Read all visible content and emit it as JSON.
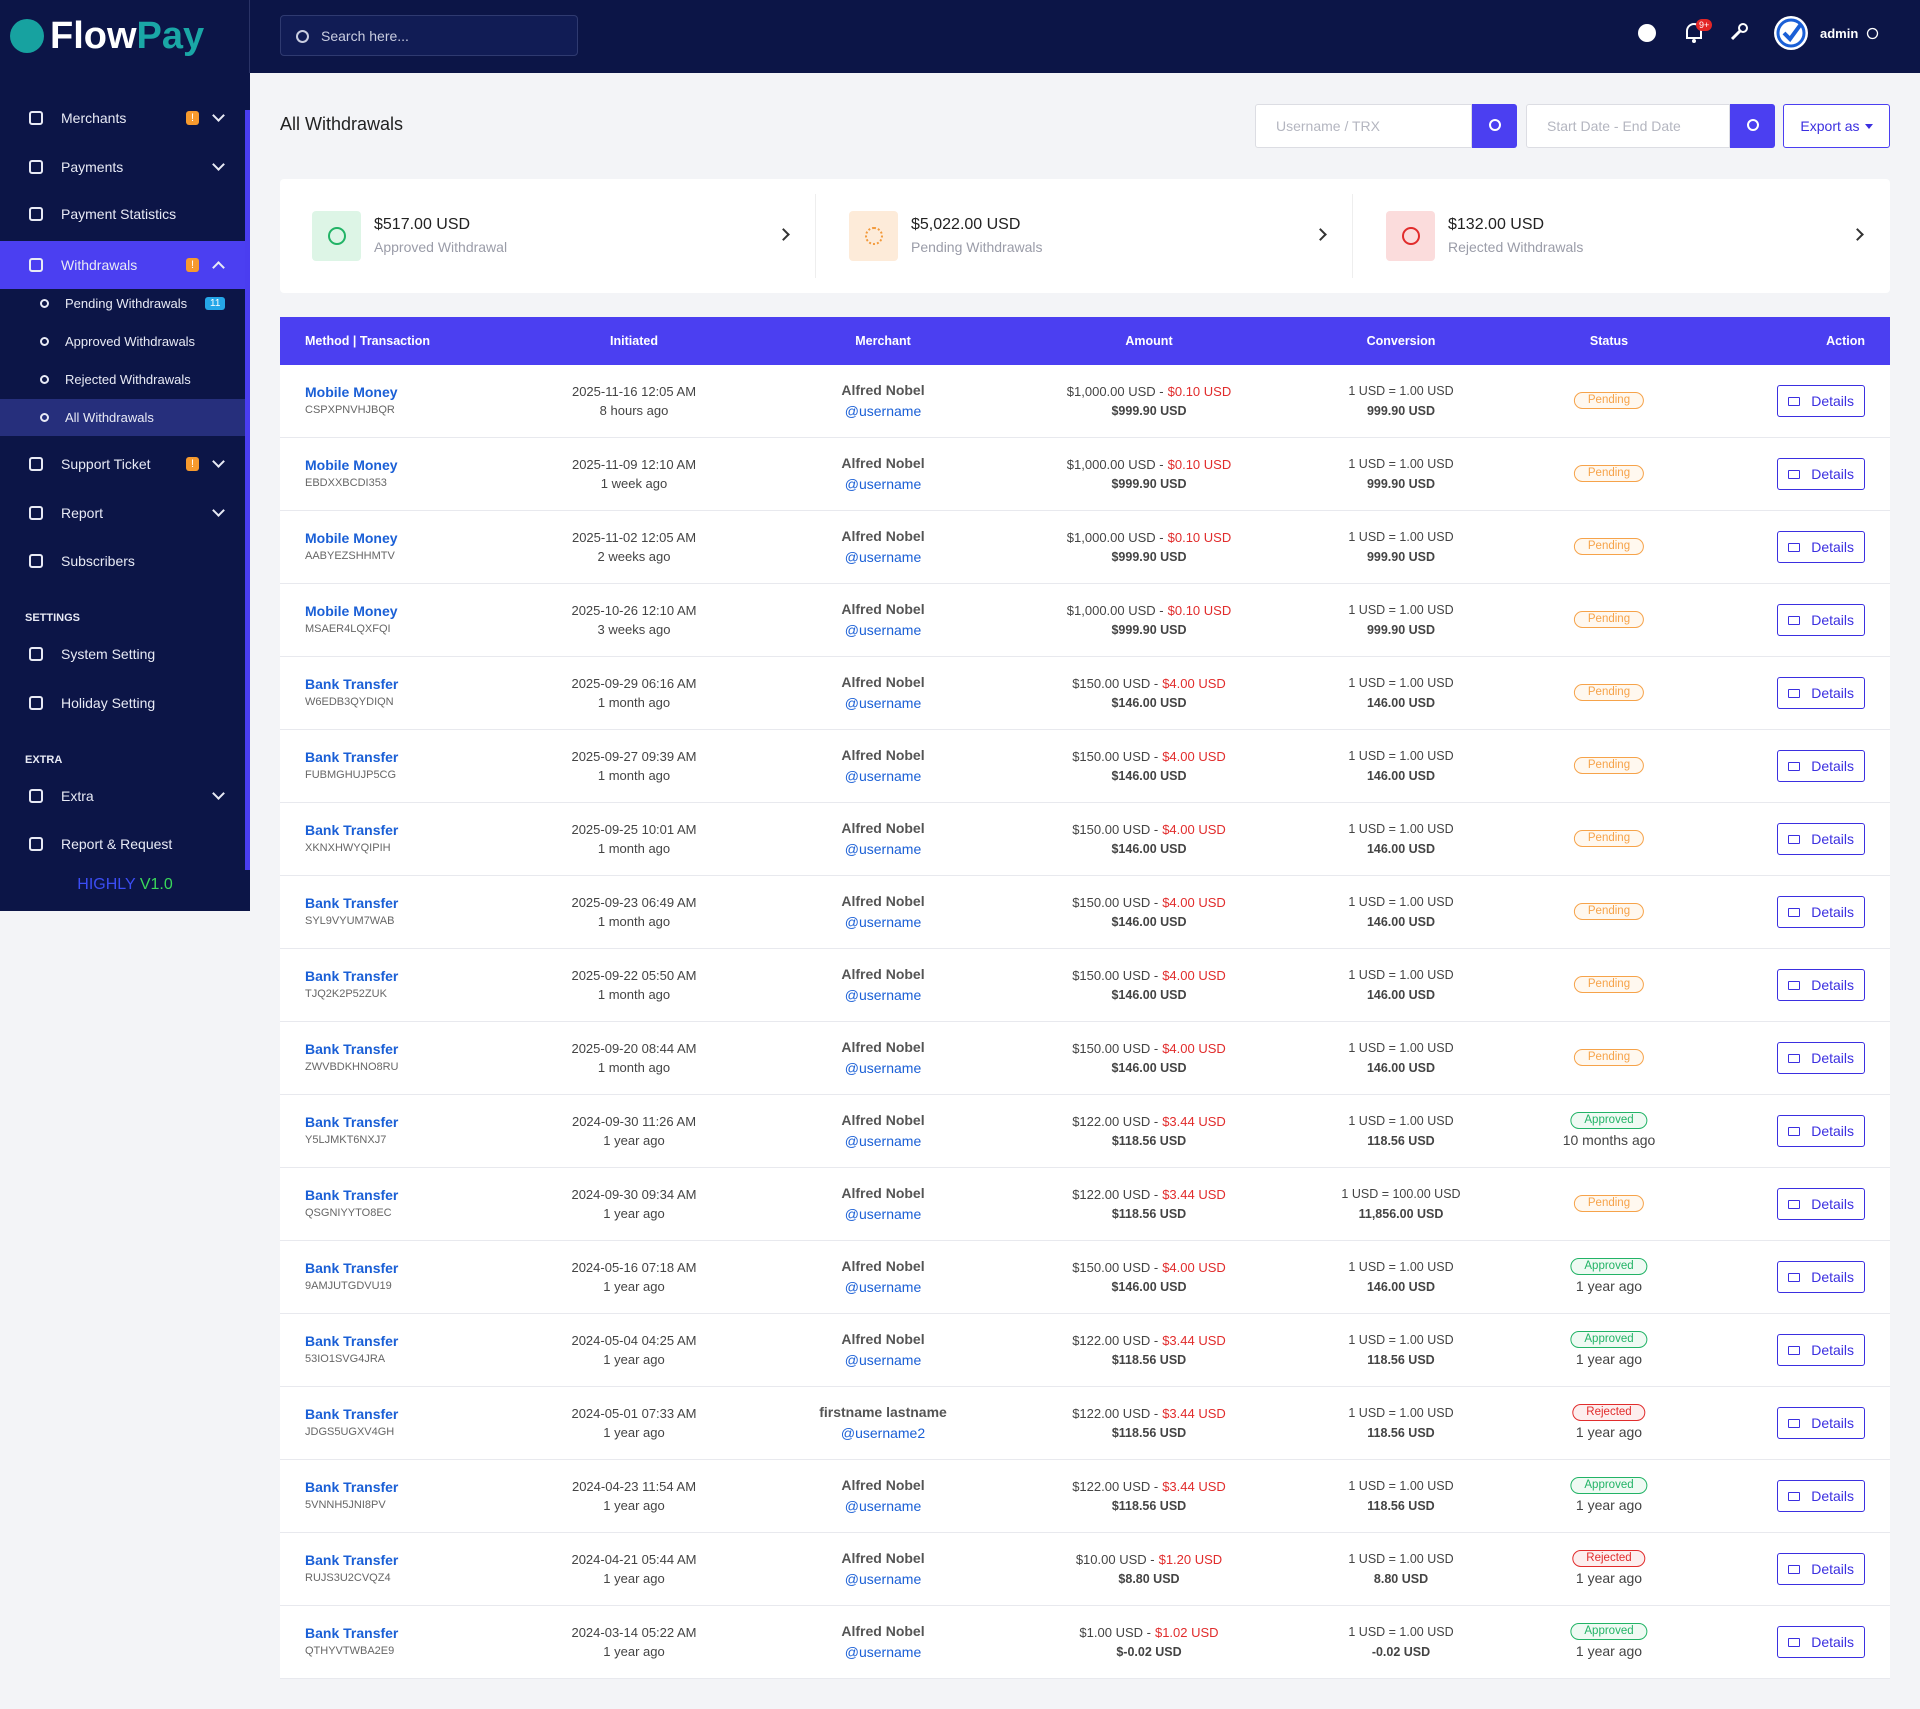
{
  "brand": {
    "part1": "Flow",
    "part2": "Pay"
  },
  "header": {
    "search_placeholder": "Search here...",
    "notification_badge": "9+",
    "user": "admin"
  },
  "sidebar": {
    "items": [
      {
        "label": "Merchants",
        "badge": "!"
      },
      {
        "label": "Payments"
      },
      {
        "label": "Payment Statistics"
      },
      {
        "label": "Withdrawals",
        "badge": "!"
      },
      {
        "label": "Pending Withdrawals",
        "badge": "11"
      },
      {
        "label": "Approved Withdrawals"
      },
      {
        "label": "Rejected Withdrawals"
      },
      {
        "label": "All Withdrawals"
      },
      {
        "label": "Support Ticket",
        "badge": "!"
      },
      {
        "label": "Report"
      },
      {
        "label": "Subscribers"
      },
      {
        "label": "SETTINGS"
      },
      {
        "label": "System Setting"
      },
      {
        "label": "Holiday Setting"
      },
      {
        "label": "EXTRA"
      },
      {
        "label": "Extra"
      },
      {
        "label": "Report & Request"
      }
    ],
    "footer": {
      "name": "HIGHLY",
      "version": "V1.0"
    }
  },
  "page": {
    "title": "All Withdrawals",
    "filter_user_placeholder": "Username / TRX",
    "filter_date_placeholder": "Start Date - End Date",
    "export": "Export as"
  },
  "stats": [
    {
      "amount": "$517.00 USD",
      "label": "Approved Withdrawal"
    },
    {
      "amount": "$5,022.00 USD",
      "label": "Pending Withdrawals"
    },
    {
      "amount": "$132.00 USD",
      "label": "Rejected Withdrawals"
    }
  ],
  "table": {
    "headers": [
      "Method | Transaction",
      "Initiated",
      "Merchant",
      "Amount",
      "Conversion",
      "Status",
      "Action"
    ],
    "action": "Details",
    "rows": [
      {
        "method": "Mobile Money",
        "trx": "CSPXPNVHJBQR",
        "date": "2025-11-16 12:05 AM",
        "ago": "8 hours ago",
        "name": "Alfred Nobel",
        "user": "@username",
        "amount": "$1,000.00 USD -",
        "charge": "$0.10 USD",
        "net": "$999.90 USD",
        "rate": "1 USD = 1.00 USD",
        "converted": "999.90 USD",
        "status": "Pending"
      },
      {
        "method": "Mobile Money",
        "trx": "EBDXXBCDI353",
        "date": "2025-11-09 12:10 AM",
        "ago": "1 week ago",
        "name": "Alfred Nobel",
        "user": "@username",
        "amount": "$1,000.00 USD -",
        "charge": "$0.10 USD",
        "net": "$999.90 USD",
        "rate": "1 USD = 1.00 USD",
        "converted": "999.90 USD",
        "status": "Pending"
      },
      {
        "method": "Mobile Money",
        "trx": "AABYEZSHHMTV",
        "date": "2025-11-02 12:05 AM",
        "ago": "2 weeks ago",
        "name": "Alfred Nobel",
        "user": "@username",
        "amount": "$1,000.00 USD -",
        "charge": "$0.10 USD",
        "net": "$999.90 USD",
        "rate": "1 USD = 1.00 USD",
        "converted": "999.90 USD",
        "status": "Pending"
      },
      {
        "method": "Mobile Money",
        "trx": "MSAER4LQXFQI",
        "date": "2025-10-26 12:10 AM",
        "ago": "3 weeks ago",
        "name": "Alfred Nobel",
        "user": "@username",
        "amount": "$1,000.00 USD -",
        "charge": "$0.10 USD",
        "net": "$999.90 USD",
        "rate": "1 USD = 1.00 USD",
        "converted": "999.90 USD",
        "status": "Pending"
      },
      {
        "method": "Bank Transfer",
        "trx": "W6EDB3QYDIQN",
        "date": "2025-09-29 06:16 AM",
        "ago": "1 month ago",
        "name": "Alfred Nobel",
        "user": "@username",
        "amount": "$150.00 USD -",
        "charge": "$4.00 USD",
        "net": "$146.00 USD",
        "rate": "1 USD = 1.00 USD",
        "converted": "146.00 USD",
        "status": "Pending"
      },
      {
        "method": "Bank Transfer",
        "trx": "FUBMGHUJP5CG",
        "date": "2025-09-27 09:39 AM",
        "ago": "1 month ago",
        "name": "Alfred Nobel",
        "user": "@username",
        "amount": "$150.00 USD -",
        "charge": "$4.00 USD",
        "net": "$146.00 USD",
        "rate": "1 USD = 1.00 USD",
        "converted": "146.00 USD",
        "status": "Pending"
      },
      {
        "method": "Bank Transfer",
        "trx": "XKNXHWYQIPIH",
        "date": "2025-09-25 10:01 AM",
        "ago": "1 month ago",
        "name": "Alfred Nobel",
        "user": "@username",
        "amount": "$150.00 USD -",
        "charge": "$4.00 USD",
        "net": "$146.00 USD",
        "rate": "1 USD = 1.00 USD",
        "converted": "146.00 USD",
        "status": "Pending"
      },
      {
        "method": "Bank Transfer",
        "trx": "SYL9VYUM7WAB",
        "date": "2025-09-23 06:49 AM",
        "ago": "1 month ago",
        "name": "Alfred Nobel",
        "user": "@username",
        "amount": "$150.00 USD -",
        "charge": "$4.00 USD",
        "net": "$146.00 USD",
        "rate": "1 USD = 1.00 USD",
        "converted": "146.00 USD",
        "status": "Pending"
      },
      {
        "method": "Bank Transfer",
        "trx": "TJQ2K2P52ZUK",
        "date": "2025-09-22 05:50 AM",
        "ago": "1 month ago",
        "name": "Alfred Nobel",
        "user": "@username",
        "amount": "$150.00 USD -",
        "charge": "$4.00 USD",
        "net": "$146.00 USD",
        "rate": "1 USD = 1.00 USD",
        "converted": "146.00 USD",
        "status": "Pending"
      },
      {
        "method": "Bank Transfer",
        "trx": "ZWVBDKHNO8RU",
        "date": "2025-09-20 08:44 AM",
        "ago": "1 month ago",
        "name": "Alfred Nobel",
        "user": "@username",
        "amount": "$150.00 USD -",
        "charge": "$4.00 USD",
        "net": "$146.00 USD",
        "rate": "1 USD = 1.00 USD",
        "converted": "146.00 USD",
        "status": "Pending"
      },
      {
        "method": "Bank Transfer",
        "trx": "Y5LJMKT6NXJ7",
        "date": "2024-09-30 11:26 AM",
        "ago": "1 year ago",
        "name": "Alfred Nobel",
        "user": "@username",
        "amount": "$122.00 USD -",
        "charge": "$3.44 USD",
        "net": "$118.56 USD",
        "rate": "1 USD = 1.00 USD",
        "converted": "118.56 USD",
        "status": "Approved",
        "status_time": "10 months ago"
      },
      {
        "method": "Bank Transfer",
        "trx": "QSGNIYYTO8EC",
        "date": "2024-09-30 09:34 AM",
        "ago": "1 year ago",
        "name": "Alfred Nobel",
        "user": "@username",
        "amount": "$122.00 USD -",
        "charge": "$3.44 USD",
        "net": "$118.56 USD",
        "rate": "1 USD = 100.00 USD",
        "converted": "11,856.00 USD",
        "status": "Pending"
      },
      {
        "method": "Bank Transfer",
        "trx": "9AMJUTGDVU19",
        "date": "2024-05-16 07:18 AM",
        "ago": "1 year ago",
        "name": "Alfred Nobel",
        "user": "@username",
        "amount": "$150.00 USD -",
        "charge": "$4.00 USD",
        "net": "$146.00 USD",
        "rate": "1 USD = 1.00 USD",
        "converted": "146.00 USD",
        "status": "Approved",
        "status_time": "1 year ago"
      },
      {
        "method": "Bank Transfer",
        "trx": "53IO1SVG4JRA",
        "date": "2024-05-04 04:25 AM",
        "ago": "1 year ago",
        "name": "Alfred Nobel",
        "user": "@username",
        "amount": "$122.00 USD -",
        "charge": "$3.44 USD",
        "net": "$118.56 USD",
        "rate": "1 USD = 1.00 USD",
        "converted": "118.56 USD",
        "status": "Approved",
        "status_time": "1 year ago"
      },
      {
        "method": "Bank Transfer",
        "trx": "JDGS5UGXV4GH",
        "date": "2024-05-01 07:33 AM",
        "ago": "1 year ago",
        "name": "firstname lastname",
        "user": "@username2",
        "amount": "$122.00 USD -",
        "charge": "$3.44 USD",
        "net": "$118.56 USD",
        "rate": "1 USD = 1.00 USD",
        "converted": "118.56 USD",
        "status": "Rejected",
        "status_time": "1 year ago"
      },
      {
        "method": "Bank Transfer",
        "trx": "5VNNH5JNI8PV",
        "date": "2024-04-23 11:54 AM",
        "ago": "1 year ago",
        "name": "Alfred Nobel",
        "user": "@username",
        "amount": "$122.00 USD -",
        "charge": "$3.44 USD",
        "net": "$118.56 USD",
        "rate": "1 USD = 1.00 USD",
        "converted": "118.56 USD",
        "status": "Approved",
        "status_time": "1 year ago"
      },
      {
        "method": "Bank Transfer",
        "trx": "RUJS3U2CVQZ4",
        "date": "2024-04-21 05:44 AM",
        "ago": "1 year ago",
        "name": "Alfred Nobel",
        "user": "@username",
        "amount": "$10.00 USD -",
        "charge": "$1.20 USD",
        "net": "$8.80 USD",
        "rate": "1 USD = 1.00 USD",
        "converted": "8.80 USD",
        "status": "Rejected",
        "status_time": "1 year ago"
      },
      {
        "method": "Bank Transfer",
        "trx": "QTHYVTWBA2E9",
        "date": "2024-03-14 05:22 AM",
        "ago": "1 year ago",
        "name": "Alfred Nobel",
        "user": "@username",
        "amount": "$1.00 USD -",
        "charge": "$1.02 USD",
        "net": "$-0.02 USD",
        "rate": "1 USD = 1.00 USD",
        "converted": "-0.02 USD",
        "status": "Approved",
        "status_time": "1 year ago"
      }
    ]
  }
}
